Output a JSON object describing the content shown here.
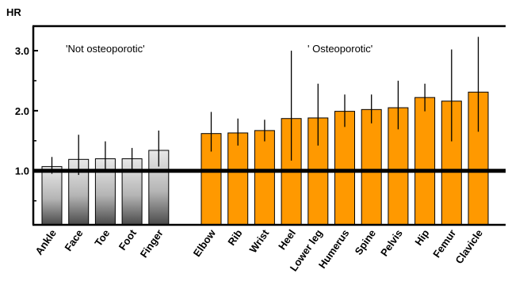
{
  "chart_data": {
    "type": "bar",
    "ylabel": "HR",
    "ylim": [
      0,
      3.3
    ],
    "yticks": [
      {
        "value": 1.0,
        "label": "1.0"
      },
      {
        "value": 2.0,
        "label": "2.0"
      },
      {
        "value": 3.0,
        "label": "3.0"
      }
    ],
    "reference_line": 1.0,
    "group_labels": [
      {
        "text": "'Not osteoporotic'"
      },
      {
        "text": "' Osteoporotic'"
      }
    ],
    "groups": [
      {
        "style": "gray",
        "color_top": "#e8e8e8",
        "color_bottom": "#4a4a4a",
        "categories": [
          "Ankle",
          "Face",
          "Toe",
          "Foot",
          "Finger"
        ],
        "values": [
          1.07,
          1.19,
          1.2,
          1.2,
          1.34
        ],
        "ci_low": [
          0.95,
          0.93,
          1.01,
          1.03,
          1.07
        ],
        "ci_high": [
          1.23,
          1.6,
          1.49,
          1.38,
          1.67
        ]
      },
      {
        "style": "orange",
        "color": "#ff9900",
        "categories": [
          "Elbow",
          "Rib",
          "Wrist",
          "Heel",
          "Lower leg",
          "Humerus",
          "Spine",
          "Pelvis",
          "Hip",
          "Femur",
          "Clavicle"
        ],
        "values": [
          1.62,
          1.63,
          1.67,
          1.87,
          1.88,
          1.99,
          2.02,
          2.05,
          2.22,
          2.16,
          2.31
        ],
        "ci_low": [
          1.32,
          1.42,
          1.49,
          1.17,
          1.42,
          1.73,
          1.79,
          1.69,
          1.99,
          1.49,
          1.65
        ],
        "ci_high": [
          1.98,
          1.87,
          1.85,
          3.0,
          2.45,
          2.27,
          2.27,
          2.5,
          2.45,
          3.02,
          3.23
        ]
      }
    ]
  }
}
